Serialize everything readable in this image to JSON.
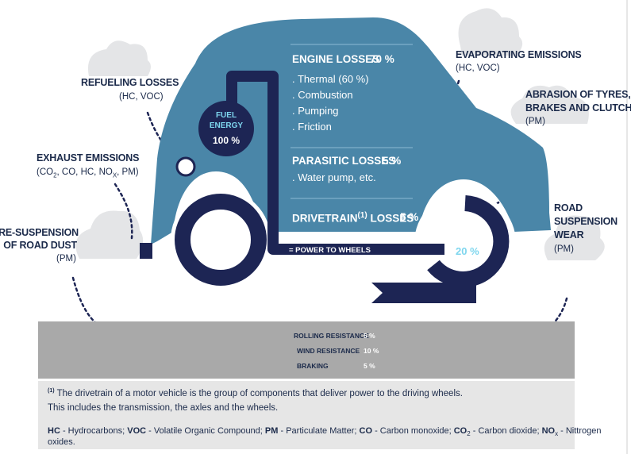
{
  "colors": {
    "car_body": "#4a86a8",
    "navy": "#1d2554",
    "cloud": "#e4e5e7",
    "road": "#a9a9a9",
    "footer_bg": "#e6e6e6",
    "accent_cyan": "#7ed6ee",
    "text_dark": "#1b2a4a"
  },
  "emissions": {
    "refueling": {
      "title": "REFUELING LOSSES",
      "sub": "(HC, VOC)"
    },
    "exhaust": {
      "title": "EXHAUST EMISSIONS",
      "sub_parts": [
        "(CO",
        "2",
        ", CO, HC, NO",
        "X",
        ", PM)"
      ]
    },
    "resuspension": {
      "title_line1": "RE-SUSPENSION",
      "title_line2": "OF ROAD DUST",
      "sub": "(PM)"
    },
    "evaporating": {
      "title": "EVAPORATING EMISSIONS",
      "sub": "(HC, VOC)"
    },
    "abrasion": {
      "title_line1": "ABRASION OF TYRES,",
      "title_line2": "BRAKES AND CLUTCH",
      "sub": "(PM)"
    },
    "road_suspension": {
      "title_line1": "ROAD",
      "title_line2": "SUSPENSION",
      "title_line3": "WEAR",
      "sub": "(PM)"
    }
  },
  "fuel": {
    "line1": "FUEL",
    "line2": "ENERGY",
    "value": "100 %"
  },
  "engine": {
    "title": "ENGINE LOSSES",
    "value": "70 %",
    "items": [
      ". Thermal (60 %)",
      ". Combustion",
      ". Pumping",
      ". Friction"
    ]
  },
  "parasitic": {
    "title": "PARASITIC LOSSES",
    "value": "5 %",
    "items": [
      ". Water pump, etc."
    ]
  },
  "drivetrain": {
    "title_a": "DRIVETRAIN",
    "sup": "(1)",
    "title_b": "LOSSES",
    "value": "5 %"
  },
  "power_to_wheels": {
    "label": "= POWER TO WHEELS",
    "value": "20 %"
  },
  "road_losses": [
    {
      "label": "ROLLING RESISTANCE",
      "value": "5 %"
    },
    {
      "label": "WIND RESISTANCE",
      "value": "10 %"
    },
    {
      "label": "BRAKING",
      "value": "5 %"
    }
  ],
  "footnote": {
    "marker": "(1)",
    "line1": "The drivetrain of a motor vehicle is the group of components that deliver power to the driving wheels.",
    "line2": "This includes the transmission, the axles and the wheels.",
    "abbr": [
      {
        "key": "HC",
        "desc": " - Hydrocarbons; "
      },
      {
        "key": "VOC",
        "desc": " - Volatile Organic Compound; "
      },
      {
        "key": "PM",
        "desc": " - Particulate Matter; "
      },
      {
        "key": "CO",
        "desc": " - Carbon monoxide; "
      },
      {
        "key": "CO",
        "sub": "2",
        "desc": " - Carbon dioxide; "
      },
      {
        "key": "NO",
        "sub": "x",
        "desc": " - Nittrogen oxides."
      }
    ]
  }
}
